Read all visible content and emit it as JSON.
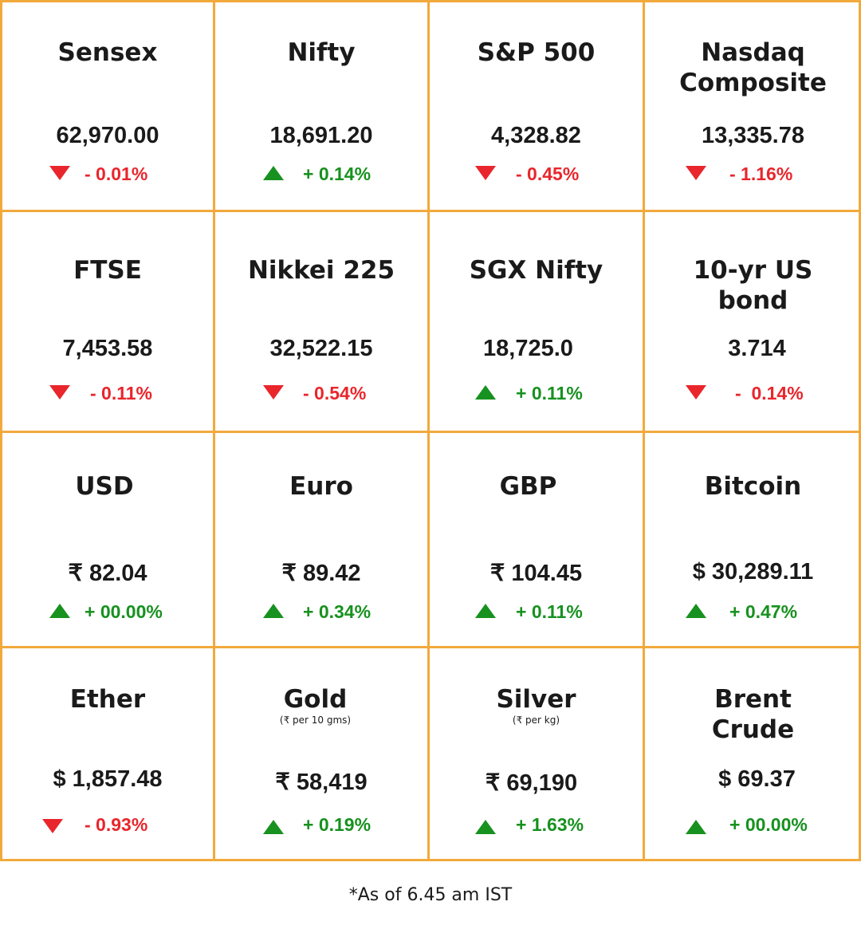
{
  "colors": {
    "border": "#F2A93B",
    "down": "#E8262C",
    "up": "#17911F"
  },
  "tiles": [
    {
      "name": "Sensex",
      "value": "62,970.00",
      "direction": "down",
      "change": "- 0.01%"
    },
    {
      "name": "Nifty",
      "value": "18,691.20",
      "direction": "up",
      "change": "+ 0.14%"
    },
    {
      "name": "S&P 500",
      "value": "4,328.82",
      "direction": "down",
      "change": "- 0.45%"
    },
    {
      "name": "Nasdaq Composite",
      "value": "13,335.78",
      "direction": "down",
      "change": "- 1.16%"
    },
    {
      "name": "FTSE",
      "value": "7,453.58",
      "direction": "down",
      "change": "- 0.11%"
    },
    {
      "name": "Nikkei 225",
      "value": "32,522.15",
      "direction": "down",
      "change": "- 0.54%"
    },
    {
      "name": "SGX Nifty",
      "value": "18,725.0",
      "direction": "up",
      "change": "+ 0.11%"
    },
    {
      "name": "10-yr US bond",
      "value": "3.714",
      "direction": "down",
      "change": "-  0.14%"
    },
    {
      "name": "USD",
      "value": "₹ 82.04",
      "direction": "up",
      "change": "+ 00.00%"
    },
    {
      "name": "Euro",
      "value": "₹ 89.42",
      "direction": "up",
      "change": "+ 0.34%"
    },
    {
      "name": "GBP",
      "value": "₹ 104.45",
      "direction": "up",
      "change": "+ 0.11%"
    },
    {
      "name": "Bitcoin",
      "value": "$ 30,289.11",
      "direction": "up",
      "change": "+ 0.47%"
    },
    {
      "name": "Ether",
      "value": "$ 1,857.48",
      "direction": "down",
      "change": "- 0.93%"
    },
    {
      "name": "Gold",
      "unit": "(₹ per 10 gms)",
      "value": "₹ 58,419",
      "direction": "up",
      "change": "+ 0.19%"
    },
    {
      "name": "Silver",
      "unit": "(₹ per kg)",
      "value": "₹ 69,190",
      "direction": "up",
      "change": "+ 1.63%"
    },
    {
      "name": "Brent Crude",
      "value": "$ 69.37",
      "direction": "up",
      "change": "+ 00.00%"
    }
  ],
  "footnote": "*As of 6.45 am IST"
}
